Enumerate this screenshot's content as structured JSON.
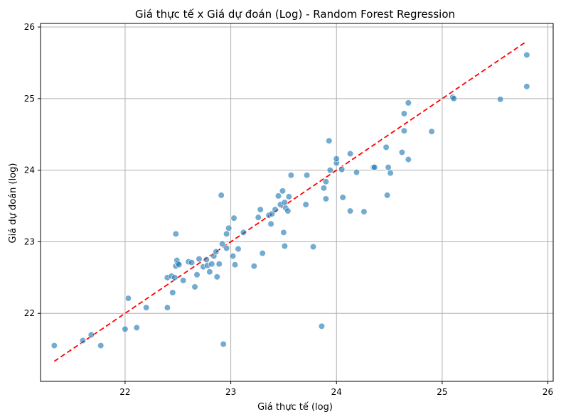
{
  "chart_data": {
    "type": "scatter",
    "title": "Giá thực tế x Giá dự đoán (Log) - Random Forest Regression",
    "xlabel": "Giá thực tế (log)",
    "ylabel": "Giá dự đoán (log)",
    "xlim": [
      21.2,
      26.05
    ],
    "ylim": [
      21.05,
      26.05
    ],
    "xticks": [
      22,
      23,
      24,
      25,
      26
    ],
    "yticks": [
      22,
      23,
      24,
      25,
      26
    ],
    "grid": true,
    "point_color": "#1f77b4",
    "reference_line": {
      "style": "dashed",
      "color": "#ff0000",
      "x": [
        21.33,
        25.8
      ],
      "y": [
        21.33,
        25.8
      ]
    },
    "points": [
      [
        21.33,
        21.55
      ],
      [
        21.6,
        21.62
      ],
      [
        21.68,
        21.7
      ],
      [
        21.77,
        21.55
      ],
      [
        22.0,
        21.78
      ],
      [
        22.03,
        22.21
      ],
      [
        22.11,
        21.8
      ],
      [
        22.2,
        22.08
      ],
      [
        22.4,
        22.08
      ],
      [
        22.4,
        22.5
      ],
      [
        22.44,
        22.52
      ],
      [
        22.45,
        22.29
      ],
      [
        22.47,
        22.5
      ],
      [
        22.48,
        22.66
      ],
      [
        22.49,
        22.74
      ],
      [
        22.48,
        23.11
      ],
      [
        22.5,
        22.7
      ],
      [
        22.51,
        22.68
      ],
      [
        22.55,
        22.46
      ],
      [
        22.6,
        22.72
      ],
      [
        22.63,
        22.71
      ],
      [
        22.66,
        22.37
      ],
      [
        22.68,
        22.54
      ],
      [
        22.7,
        22.76
      ],
      [
        22.74,
        22.65
      ],
      [
        22.77,
        22.75
      ],
      [
        22.78,
        22.67
      ],
      [
        22.8,
        22.58
      ],
      [
        22.82,
        22.69
      ],
      [
        22.84,
        22.8
      ],
      [
        22.86,
        22.86
      ],
      [
        22.87,
        22.51
      ],
      [
        22.89,
        22.69
      ],
      [
        22.92,
        22.97
      ],
      [
        22.93,
        21.57
      ],
      [
        22.91,
        23.65
      ],
      [
        22.96,
        22.91
      ],
      [
        22.96,
        23.11
      ],
      [
        22.98,
        23.19
      ],
      [
        23.02,
        22.8
      ],
      [
        23.04,
        22.68
      ],
      [
        23.03,
        23.33
      ],
      [
        23.07,
        22.9
      ],
      [
        23.12,
        23.13
      ],
      [
        23.22,
        22.66
      ],
      [
        23.26,
        23.34
      ],
      [
        23.28,
        23.45
      ],
      [
        23.3,
        22.84
      ],
      [
        23.36,
        23.37
      ],
      [
        23.38,
        23.25
      ],
      [
        23.39,
        23.39
      ],
      [
        23.42,
        23.45
      ],
      [
        23.45,
        23.64
      ],
      [
        23.47,
        23.52
      ],
      [
        23.49,
        23.71
      ],
      [
        23.5,
        23.13
      ],
      [
        23.51,
        22.94
      ],
      [
        23.51,
        23.55
      ],
      [
        23.52,
        23.47
      ],
      [
        23.54,
        23.43
      ],
      [
        23.55,
        23.63
      ],
      [
        23.57,
        23.93
      ],
      [
        23.71,
        23.52
      ],
      [
        23.72,
        23.93
      ],
      [
        23.78,
        22.93
      ],
      [
        23.86,
        21.82
      ],
      [
        23.88,
        23.75
      ],
      [
        23.9,
        23.6
      ],
      [
        23.9,
        23.84
      ],
      [
        23.93,
        24.41
      ],
      [
        23.94,
        24.0
      ],
      [
        24.0,
        24.1
      ],
      [
        24.0,
        24.16
      ],
      [
        24.05,
        24.01
      ],
      [
        24.06,
        23.62
      ],
      [
        24.13,
        24.23
      ],
      [
        24.13,
        23.43
      ],
      [
        24.19,
        23.97
      ],
      [
        24.26,
        23.42
      ],
      [
        24.35,
        24.04
      ],
      [
        24.36,
        24.04
      ],
      [
        24.47,
        24.32
      ],
      [
        24.48,
        23.65
      ],
      [
        24.49,
        24.04
      ],
      [
        24.51,
        23.96
      ],
      [
        24.62,
        24.25
      ],
      [
        24.64,
        24.79
      ],
      [
        24.64,
        24.55
      ],
      [
        24.68,
        24.94
      ],
      [
        24.68,
        24.15
      ],
      [
        24.9,
        24.54
      ],
      [
        25.1,
        25.02
      ],
      [
        25.11,
        25.0
      ],
      [
        25.55,
        24.99
      ],
      [
        25.8,
        25.61
      ],
      [
        25.8,
        25.17
      ]
    ]
  }
}
